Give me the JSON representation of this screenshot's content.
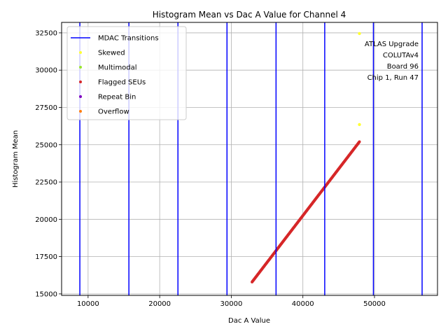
{
  "chart_data": {
    "type": "scatter",
    "title": "Histogram Mean vs Dac A Value for Channel 4",
    "xlabel": "Dac A Value",
    "ylabel": "Histogram Mean",
    "xlim": [
      6300,
      58800
    ],
    "ylim": [
      14900,
      33200
    ],
    "xticks": [
      10000,
      20000,
      30000,
      40000,
      50000
    ],
    "yticks": [
      15000,
      17500,
      20000,
      22500,
      25000,
      27500,
      30000,
      32500
    ],
    "xtick_labels": [
      "10000",
      "20000",
      "30000",
      "40000",
      "50000"
    ],
    "ytick_labels": [
      "15000",
      "17500",
      "20000",
      "22500",
      "25000",
      "27500",
      "30000",
      "32500"
    ],
    "grid": true,
    "legend_position": "top-left",
    "mdac_transitions": {
      "name": "MDAC Transitions",
      "color": "#0000ff",
      "x": [
        8850,
        15700,
        22550,
        29400,
        36250,
        43050,
        49850,
        56650
      ]
    },
    "series": [
      {
        "name": "Skewed",
        "color": "#ffff33",
        "points": [
          [
            47900,
            32450
          ],
          [
            47900,
            26350
          ]
        ]
      },
      {
        "name": "Multimodal",
        "color": "#99e62e",
        "points": []
      },
      {
        "name": "Flagged SEUs",
        "color": "#d62728",
        "line_from": [
          32900,
          15800
        ],
        "line_to": [
          47900,
          25200
        ]
      },
      {
        "name": "Repeat Bin",
        "color": "#7f00bf",
        "points": []
      },
      {
        "name": "Overflow",
        "color": "#ff7f0e",
        "points": []
      }
    ],
    "annotation": [
      "ATLAS Upgrade",
      "COLUTAv4",
      "Board 96",
      "Chip 1, Run 47"
    ]
  }
}
